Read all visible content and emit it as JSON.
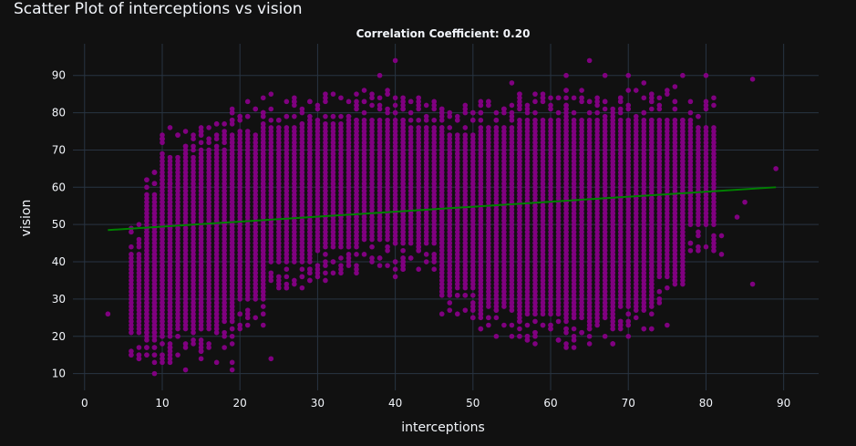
{
  "colors": {
    "background": "#111111",
    "grid": "#283442",
    "text": "#f2f5fa",
    "points": "#800080",
    "trendline": "#008000"
  },
  "chart_data": {
    "type": "scatter",
    "title": "Scatter Plot of interceptions vs vision",
    "subtitle": "Correlation Coefficient: 0.20",
    "xlabel": "interceptions",
    "ylabel": "vision",
    "xlim": [
      -1.5,
      94.5
    ],
    "ylim": [
      5.5,
      98.5
    ],
    "xticks": [
      0,
      10,
      20,
      30,
      40,
      50,
      60,
      70,
      80,
      90
    ],
    "yticks": [
      10,
      20,
      30,
      40,
      50,
      60,
      70,
      80,
      90
    ],
    "grid": true,
    "series": [
      {
        "type": "scatter",
        "color": "#800080",
        "bands": [
          {
            "x0": 6,
            "x1": 9,
            "ymin": 21,
            "ymax": 42
          },
          {
            "x0": 8,
            "x1": 11,
            "ymin": 20,
            "ymax": 58
          },
          {
            "x0": 10,
            "x1": 15,
            "ymin": 22,
            "ymax": 68
          },
          {
            "x0": 15,
            "x1": 19,
            "ymin": 24,
            "ymax": 70
          },
          {
            "x0": 19,
            "x1": 23,
            "ymin": 30,
            "ymax": 74
          },
          {
            "x0": 23,
            "x1": 29,
            "ymin": 40,
            "ymax": 76
          },
          {
            "x0": 29,
            "x1": 35,
            "ymin": 44,
            "ymax": 77
          },
          {
            "x0": 35,
            "x1": 41,
            "ymin": 46,
            "ymax": 78
          },
          {
            "x0": 41,
            "x1": 46,
            "ymin": 45,
            "ymax": 76
          },
          {
            "x0": 46,
            "x1": 51,
            "ymin": 33,
            "ymax": 74
          },
          {
            "x0": 51,
            "x1": 56,
            "ymin": 28,
            "ymax": 76
          },
          {
            "x0": 56,
            "x1": 62,
            "ymin": 26,
            "ymax": 78
          },
          {
            "x0": 62,
            "x1": 68,
            "ymin": 25,
            "ymax": 78
          },
          {
            "x0": 68,
            "x1": 73,
            "ymin": 28,
            "ymax": 78
          },
          {
            "x0": 73,
            "x1": 77,
            "ymin": 36,
            "ymax": 78
          },
          {
            "x0": 77,
            "x1": 81,
            "ymin": 50,
            "ymax": 76
          }
        ],
        "outliers": [
          [
            3,
            26
          ],
          [
            9,
            10
          ],
          [
            11,
            15
          ],
          [
            13,
            11
          ],
          [
            15,
            14
          ],
          [
            17,
            13
          ],
          [
            18,
            17
          ],
          [
            19,
            11
          ],
          [
            19,
            13
          ],
          [
            21,
            83
          ],
          [
            24,
            85
          ],
          [
            24,
            14
          ],
          [
            27,
            83
          ],
          [
            38,
            90
          ],
          [
            40,
            94
          ],
          [
            40,
            36
          ],
          [
            40,
            38
          ],
          [
            40,
            40
          ],
          [
            55,
            88
          ],
          [
            55,
            20
          ],
          [
            62,
            90
          ],
          [
            65,
            94
          ],
          [
            67,
            90
          ],
          [
            70,
            90
          ],
          [
            72,
            22
          ],
          [
            72,
            88
          ],
          [
            75,
            23
          ],
          [
            76,
            87
          ],
          [
            77,
            90
          ],
          [
            80,
            90
          ],
          [
            82,
            42
          ],
          [
            82,
            47
          ],
          [
            84,
            52
          ],
          [
            85,
            56
          ],
          [
            86,
            34
          ],
          [
            86,
            89
          ],
          [
            89,
            65
          ],
          [
            8,
            62
          ],
          [
            10,
            63
          ],
          [
            12,
            66
          ],
          [
            14,
            70
          ],
          [
            30,
            36
          ],
          [
            31,
            35
          ],
          [
            46,
            79
          ],
          [
            50,
            25
          ],
          [
            52,
            25
          ],
          [
            60,
            22
          ],
          [
            65,
            24
          ],
          [
            70,
            24
          ]
        ]
      },
      {
        "type": "line",
        "color": "#008000",
        "x": [
          3,
          89
        ],
        "y": [
          48.5,
          60.0
        ]
      }
    ]
  }
}
